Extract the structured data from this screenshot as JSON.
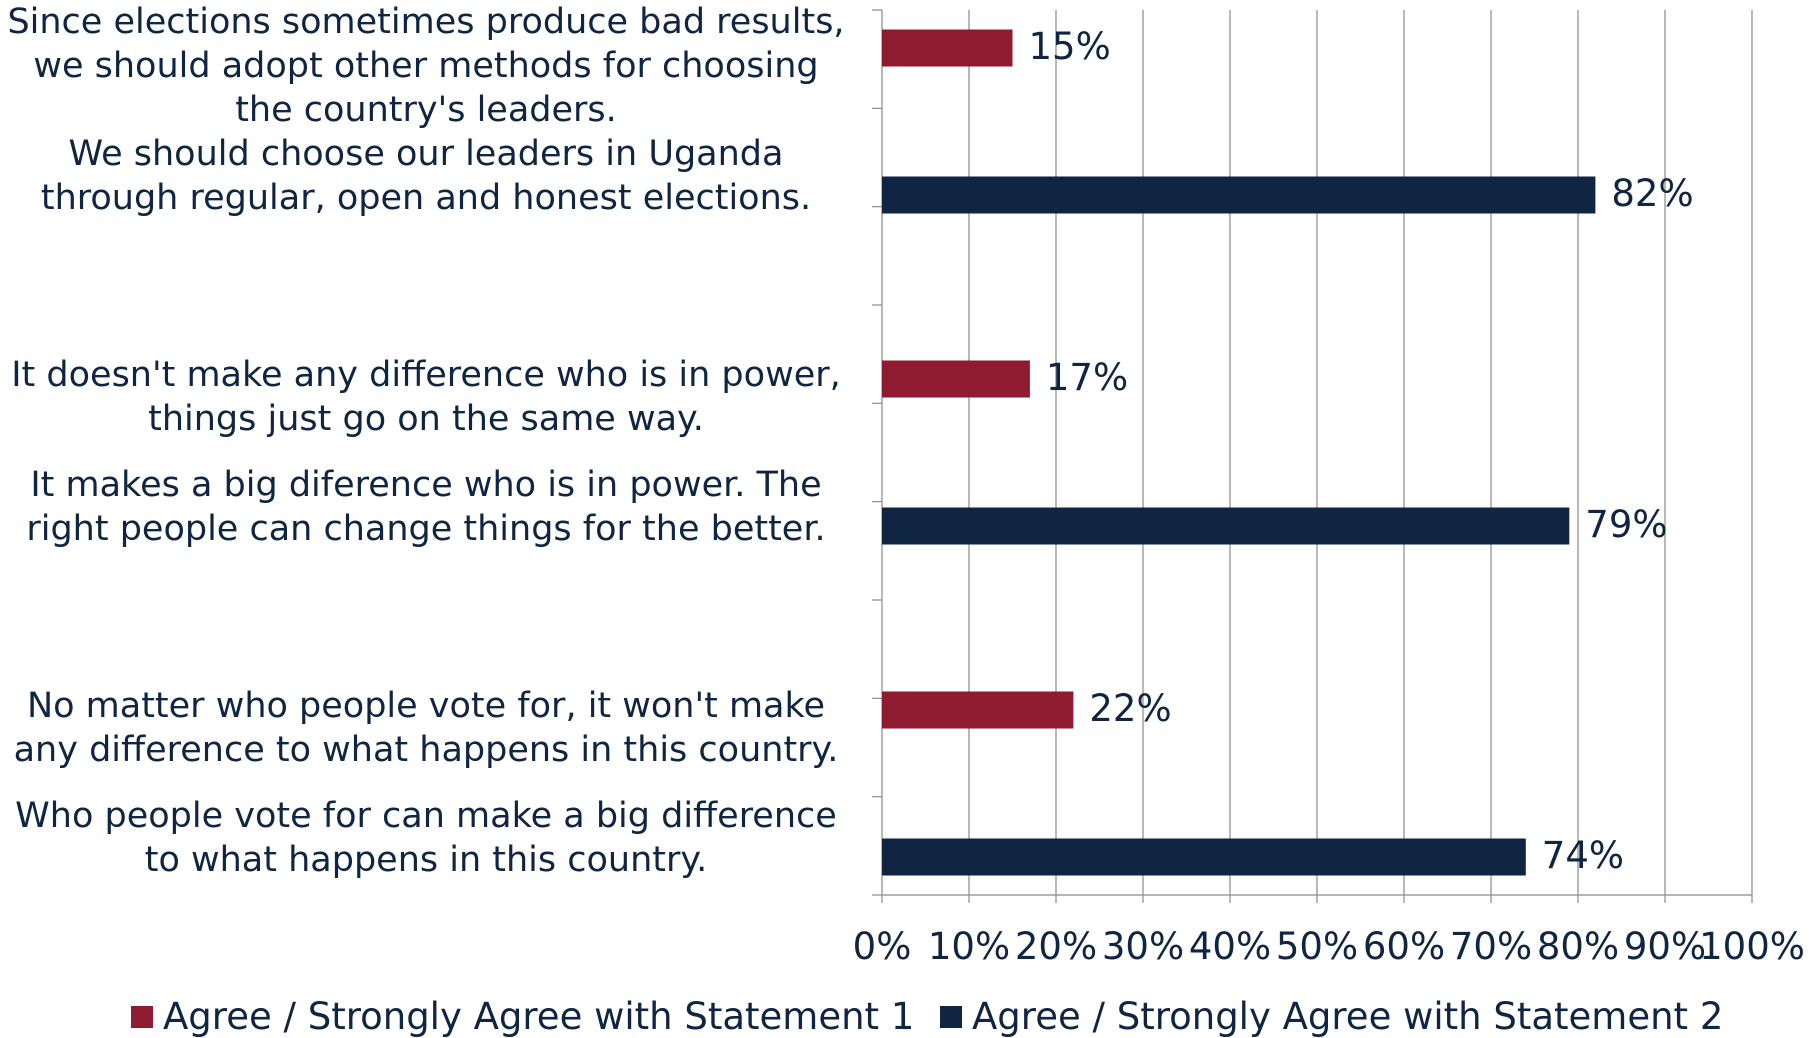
{
  "chart_data": {
    "type": "bar",
    "orientation": "horizontal",
    "categories": [
      "Since elections sometimes produce bad results, we should adopt other methods for choosing the country's leaders.",
      "We should choose our leaders in Uganda through regular, open and honest elections.",
      "It doesn't make any difference who is in power, things just go on the same way.",
      "It makes a big diference who is in power.  The right people can change things for the better.",
      "No matter who people vote for, it won't make any difference to what happens in this country.",
      "Who people vote for can make a big difference to what happens in this country."
    ],
    "values": [
      15,
      82,
      17,
      79,
      22,
      74
    ],
    "data_labels": [
      "15%",
      "82%",
      "17%",
      "79%",
      "22%",
      "74%"
    ],
    "series_index": [
      0,
      1,
      0,
      1,
      0,
      1
    ],
    "series": [
      {
        "name": "Agree / Strongly Agree with Statement 1",
        "color": "#8e1b2f"
      },
      {
        "name": "Agree / Strongly Agree with Statement 2",
        "color": "#0f2542"
      }
    ],
    "xlim": [
      0,
      100
    ],
    "x_ticks": [
      "0%",
      "10%",
      "20%",
      "30%",
      "40%",
      "50%",
      "60%",
      "70%",
      "80%",
      "90%",
      "100%"
    ],
    "grid": true,
    "legend_position": "bottom",
    "title": "",
    "xlabel": "",
    "ylabel": ""
  }
}
